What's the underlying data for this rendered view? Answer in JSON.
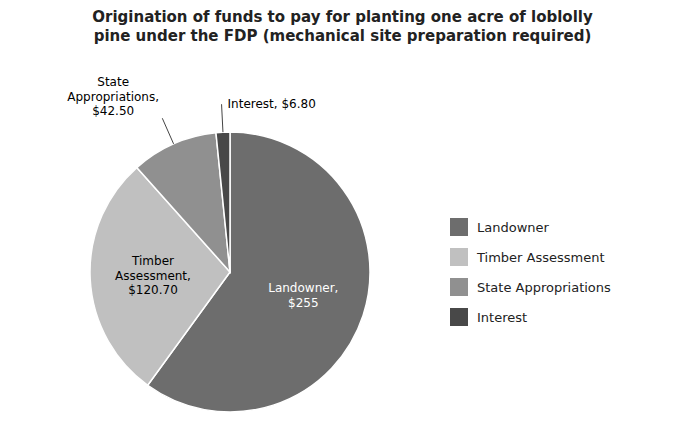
{
  "chart_data": {
    "type": "pie",
    "title": "Origination of funds to pay for planting one acre of loblolly\npine under the FDP (mechanical site preparation required)",
    "categories": [
      "Landowner",
      "Timber Assessment",
      "State Appropriations",
      "Interest"
    ],
    "values": [
      255,
      120.7,
      42.5,
      6.8
    ],
    "value_labels": [
      "Landowner,\n$255",
      "Timber\nAssessment,\n$120.70",
      "State\nAppropriations,\n$42.50",
      "Interest, $6.80"
    ],
    "colors": [
      "#6d6d6d",
      "#c0c0c0",
      "#909090",
      "#484848"
    ],
    "data_labels": true,
    "legend": "right"
  }
}
